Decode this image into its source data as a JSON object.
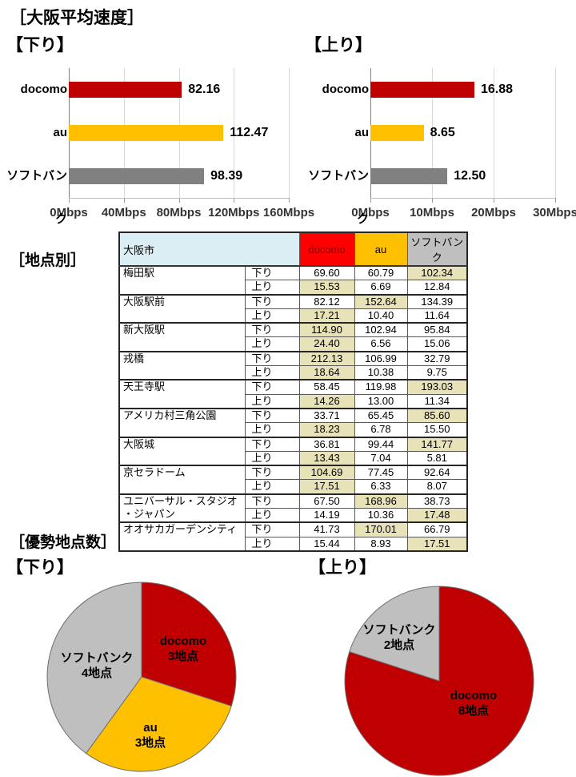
{
  "page": {
    "main_title": "［大阪平均速度］",
    "by_location_title": "［地点別］",
    "dominant_title": "［優勢地点数］",
    "download_label": "【下り】",
    "upload_label": "【上り】"
  },
  "colors": {
    "docomo_red": "#C00000",
    "docomo_header_bg": "#FF0000",
    "docomo_header_text": "#7F0000",
    "au_gold": "#FFC000",
    "softbank_gray_bar": "#808080",
    "softbank_gray_pie": "#BFBFBF",
    "winner_highlight_bg": "#E8E2B8",
    "city_header_bg": "#DBEEF4"
  },
  "chart_data": [
    {
      "id": "avg_down",
      "type": "bar",
      "orientation": "horizontal",
      "title": "【下り】",
      "categories": [
        "docomo",
        "au",
        "ソフトバンク"
      ],
      "values": [
        82.16,
        112.47,
        98.39
      ],
      "value_labels": [
        "82.16",
        "112.47",
        "98.39"
      ],
      "bar_colors": [
        "#C00000",
        "#FFC000",
        "#808080"
      ],
      "xlim": [
        0,
        160
      ],
      "ticks": [
        0,
        40,
        80,
        120,
        160
      ],
      "tick_labels": [
        "0Mbps",
        "40Mbps",
        "80Mbps",
        "120Mbps",
        "160Mbps"
      ],
      "unit": "Mbps",
      "grid": true
    },
    {
      "id": "avg_up",
      "type": "bar",
      "orientation": "horizontal",
      "title": "【上り】",
      "categories": [
        "docomo",
        "au",
        "ソフトバンク"
      ],
      "values": [
        16.88,
        8.65,
        12.5
      ],
      "value_labels": [
        "16.88",
        "8.65",
        "12.50"
      ],
      "bar_colors": [
        "#C00000",
        "#FFC000",
        "#808080"
      ],
      "xlim": [
        0,
        30
      ],
      "ticks": [
        0,
        10,
        20,
        30
      ],
      "tick_labels": [
        "0Mbps",
        "10Mbps",
        "20Mbps",
        "30Mbps"
      ],
      "unit": "Mbps",
      "grid": true
    },
    {
      "id": "pie_down",
      "type": "pie",
      "title": "【下り】",
      "start_angle_deg": 0,
      "clockwise": true,
      "slices": [
        {
          "name": "docomo",
          "points_label": "3地点",
          "value": 3,
          "color": "#C00000",
          "label_pos": [
            177,
            85
          ]
        },
        {
          "name": "au",
          "points_label": "3地点",
          "value": 3,
          "color": "#FFC000",
          "label_pos": [
            136,
            193
          ]
        },
        {
          "name": "ソフトバンク",
          "points_label": "4地点",
          "value": 4,
          "color": "#BFBFBF",
          "label_pos": [
            69,
            106
          ]
        }
      ]
    },
    {
      "id": "pie_up",
      "type": "pie",
      "title": "【上り】",
      "start_angle_deg": 0,
      "clockwise": true,
      "slices": [
        {
          "name": "docomo",
          "points_label": "8地点",
          "value": 8,
          "color": "#C00000",
          "label_pos": [
            168,
            148
          ]
        },
        {
          "name": "ソフトバンク",
          "points_label": "2地点",
          "value": 2,
          "color": "#BFBFBF",
          "label_pos": [
            75,
            66
          ]
        }
      ]
    }
  ],
  "table": {
    "city_header": "大阪市",
    "carrier_columns": [
      "docomo",
      "au",
      "ソフトバンク"
    ],
    "direction_down": "下り",
    "direction_up": "上り",
    "rows": [
      {
        "location": "梅田駅",
        "down": [
          "69.60",
          "60.79",
          "102.34"
        ],
        "down_winner": 2,
        "up": [
          "15.53",
          "6.69",
          "12.84"
        ],
        "up_winner": 0
      },
      {
        "location": "大阪駅前",
        "down": [
          "82.12",
          "152.64",
          "134.39"
        ],
        "down_winner": 1,
        "up": [
          "17.21",
          "10.40",
          "11.64"
        ],
        "up_winner": 0
      },
      {
        "location": "新大阪駅",
        "down": [
          "114.90",
          "102.94",
          "95.84"
        ],
        "down_winner": 0,
        "up": [
          "24.40",
          "6.56",
          "15.06"
        ],
        "up_winner": 0
      },
      {
        "location": "戎橋",
        "down": [
          "212.13",
          "106.99",
          "32.79"
        ],
        "down_winner": 0,
        "up": [
          "18.64",
          "10.38",
          "9.75"
        ],
        "up_winner": 0
      },
      {
        "location": "天王寺駅",
        "down": [
          "58.45",
          "119.98",
          "193.03"
        ],
        "down_winner": 2,
        "up": [
          "14.26",
          "13.00",
          "11.34"
        ],
        "up_winner": 0
      },
      {
        "location": "アメリカ村三角公園",
        "down": [
          "33.71",
          "65.45",
          "85.60"
        ],
        "down_winner": 2,
        "up": [
          "18.23",
          "6.78",
          "15.50"
        ],
        "up_winner": 0
      },
      {
        "location": "大阪城",
        "down": [
          "36.81",
          "99.44",
          "141.77"
        ],
        "down_winner": 2,
        "up": [
          "13.43",
          "7.04",
          "5.81"
        ],
        "up_winner": 0
      },
      {
        "location": "京セラドーム",
        "down": [
          "104.69",
          "77.45",
          "92.64"
        ],
        "down_winner": 0,
        "up": [
          "17.51",
          "6.33",
          "8.07"
        ],
        "up_winner": 0
      },
      {
        "location": "ユニバーサル・スタジオ\n・ジャパン",
        "down": [
          "67.50",
          "168.96",
          "38.73"
        ],
        "down_winner": 1,
        "up": [
          "14.19",
          "10.36",
          "17.48"
        ],
        "up_winner": 2
      },
      {
        "location": "オオサカガーデンシティ",
        "down": [
          "41.73",
          "170.01",
          "66.79"
        ],
        "down_winner": 1,
        "up": [
          "15.44",
          "8.93",
          "17.51"
        ],
        "up_winner": 2
      }
    ]
  }
}
